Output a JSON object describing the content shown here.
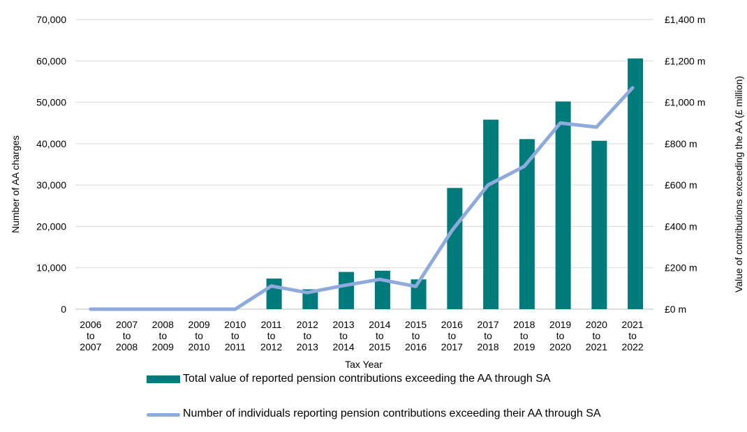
{
  "chart_data": {
    "type": "bar+line",
    "categories": [
      [
        "2006",
        "to",
        "2007"
      ],
      [
        "2007",
        "to",
        "2008"
      ],
      [
        "2008",
        "to",
        "2009"
      ],
      [
        "2009",
        "to",
        "2010"
      ],
      [
        "2010",
        "to",
        "2011"
      ],
      [
        "2011",
        "to",
        "2012"
      ],
      [
        "2012",
        "to",
        "2013"
      ],
      [
        "2013",
        "to",
        "2014"
      ],
      [
        "2014",
        "to",
        "2015"
      ],
      [
        "2015",
        "to",
        "2016"
      ],
      [
        "2016",
        "to",
        "2017"
      ],
      [
        "2017",
        "to",
        "2018"
      ],
      [
        "2018",
        "to",
        "2019"
      ],
      [
        "2019",
        "to",
        "2020"
      ],
      [
        "2020",
        "to",
        "2021"
      ],
      [
        "2021",
        "to",
        "2022"
      ]
    ],
    "xlabel": "Tax Year",
    "ylabel_left": "Number of AA charges",
    "ylabel_right": "Value of contributions exceeding the AA (£ million)",
    "ylim_left": [
      0,
      70000
    ],
    "ylim_right": [
      0,
      1400
    ],
    "left_ticks": [
      "0",
      "10,000",
      "20,000",
      "30,000",
      "40,000",
      "50,000",
      "60,000",
      "70,000"
    ],
    "right_ticks": [
      "£0 m",
      "£200 m",
      "£400 m",
      "£600 m",
      "£800 m",
      "£1,000 m",
      "£1,200 m",
      "£1,400 m"
    ],
    "grid": true,
    "legend_position": "bottom",
    "series": [
      {
        "name": "Total value of reported pension contributions exceeding the AA through SA",
        "type": "bar",
        "axis": "right",
        "color": "#007b7b",
        "values": [
          null,
          null,
          null,
          null,
          null,
          148,
          96,
          180,
          186,
          144,
          586,
          916,
          822,
          1004,
          814,
          1212
        ]
      },
      {
        "name": "Number of individuals reporting pension contributions exceeding their AA through SA",
        "type": "line",
        "axis": "left",
        "color": "#8faadc",
        "values": [
          0,
          0,
          0,
          0,
          0,
          5600,
          4000,
          5700,
          7200,
          5500,
          19000,
          30000,
          34500,
          45000,
          44000,
          53500
        ]
      }
    ]
  }
}
